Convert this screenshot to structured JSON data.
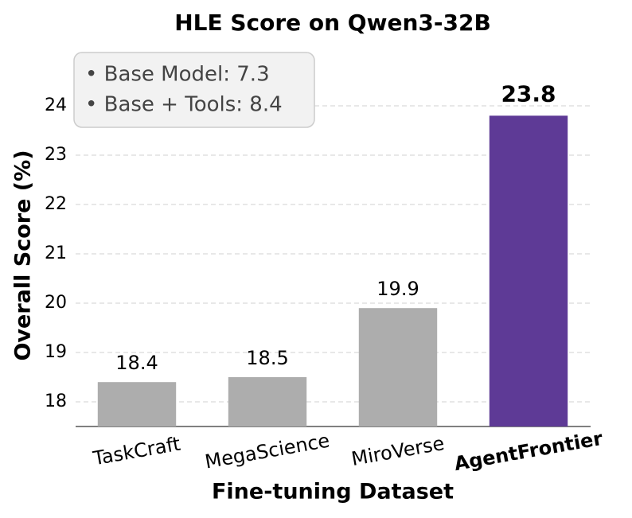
{
  "chart_data": {
    "type": "bar",
    "title": "HLE Score on Qwen3-32B",
    "x_label": "Fine-tuning Dataset",
    "y_label": "Overall Score (%)",
    "categories": [
      "TaskCraft",
      "MegaScience",
      "MiroVerse",
      "AgentFrontier"
    ],
    "values": [
      18.4,
      18.5,
      19.9,
      23.8
    ],
    "colors": [
      "#adadad",
      "#adadad",
      "#adadad",
      "#5e3a96"
    ],
    "bold": [
      false,
      false,
      false,
      true
    ],
    "ylim": [
      17.5,
      25
    ],
    "yticks": [
      18,
      19,
      20,
      21,
      22,
      23,
      24
    ],
    "grid": true,
    "annotations": [
      "• Base Model: 7.3",
      "• Base + Tools: 8.4"
    ]
  }
}
